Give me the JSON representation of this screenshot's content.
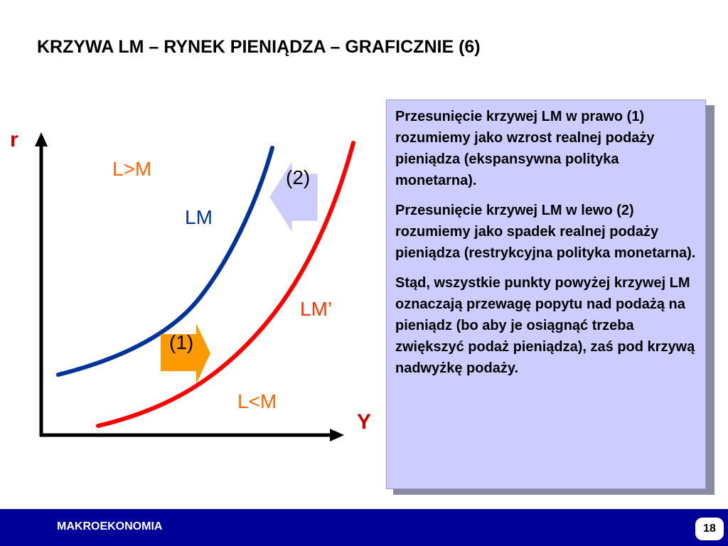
{
  "title": "KRZYWA LM – RYNEK PIENIĄDZA – GRAFICZNIE (6)",
  "diagram": {
    "axis_y_label": "r",
    "axis_x_label": "Y",
    "label_excess_demand": "L>M",
    "label_excess_supply": "L<M",
    "curve_lm_label": "LM",
    "curve_lm_shifted_label": "LM’",
    "arrow_left_label": "(2)",
    "arrow_right_label": "(1)",
    "colors": {
      "axis": "#000000",
      "curve_lm": "#003399",
      "curve_lm_shifted": "#ff0000",
      "arrow_left": "#ccccff",
      "arrow_right": "#ff9900"
    }
  },
  "info_box": {
    "paragraphs": [
      "Przesunięcie krzywej LM w prawo (1) rozumiemy jako wzrost realnej podaży pieniądza (ekspansywna polityka monetarna).",
      "Przesunięcie krzywej LM w lewo (2) rozumiemy jako spadek realnej podaży pieniądza (restrykcyjna polityka monetarna).",
      "Stąd, wszystkie punkty powyżej krzywej LM oznaczają przewagę popytu nad podażą na pieniądz (bo aby je osiągnąć trzeba zwiększyć podaż pieniądza), zaś pod krzywą nadwyżkę podaży."
    ]
  },
  "footer": {
    "label": "MAKROEKONOMIA",
    "page_number": "18"
  }
}
